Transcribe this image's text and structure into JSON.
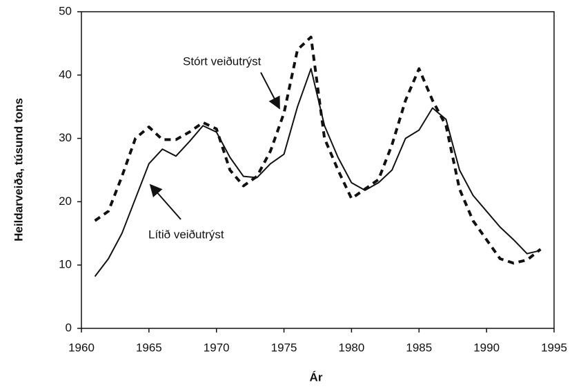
{
  "chart_data": {
    "type": "line",
    "x": [
      1961,
      1962,
      1963,
      1964,
      1965,
      1966,
      1967,
      1968,
      1969,
      1970,
      1971,
      1972,
      1973,
      1974,
      1975,
      1976,
      1977,
      1978,
      1979,
      1980,
      1981,
      1982,
      1983,
      1984,
      1985,
      1986,
      1987,
      1988,
      1989,
      1990,
      1991,
      1992,
      1993,
      1994
    ],
    "series": [
      {
        "name": "Lítið veiðutrýst",
        "color": "#111111",
        "dashed": false,
        "values": [
          8.2,
          11,
          15,
          20.5,
          26,
          28.3,
          27.2,
          29.5,
          32,
          31,
          27,
          24,
          23.8,
          26,
          27.5,
          35,
          41,
          32,
          27,
          23,
          21.8,
          23,
          25,
          30,
          31.3,
          34.8,
          33,
          25,
          21,
          18.5,
          16,
          14,
          11.8,
          12.3
        ]
      },
      {
        "name": "Stórt veiðutrýst",
        "color": "#111111",
        "dashed": true,
        "values": [
          17,
          18.5,
          24,
          30,
          31.8,
          29.8,
          29.8,
          31,
          32.5,
          31.5,
          25,
          22.5,
          24,
          28,
          34,
          44,
          46,
          30,
          25,
          20.5,
          22,
          23.5,
          29,
          36,
          41,
          36,
          32,
          22,
          17,
          14,
          11,
          10.3,
          10.8,
          12.5
        ]
      }
    ],
    "xlabel": "Ár",
    "ylabel": "Heildarveiða, túsund tons",
    "xlim": [
      1960,
      1995
    ],
    "xticks": [
      1960,
      1965,
      1970,
      1975,
      1980,
      1985,
      1990,
      1995
    ],
    "ylim": [
      0,
      50
    ],
    "yticks": [
      0,
      10,
      20,
      30,
      40,
      50
    ],
    "grid": false
  }
}
